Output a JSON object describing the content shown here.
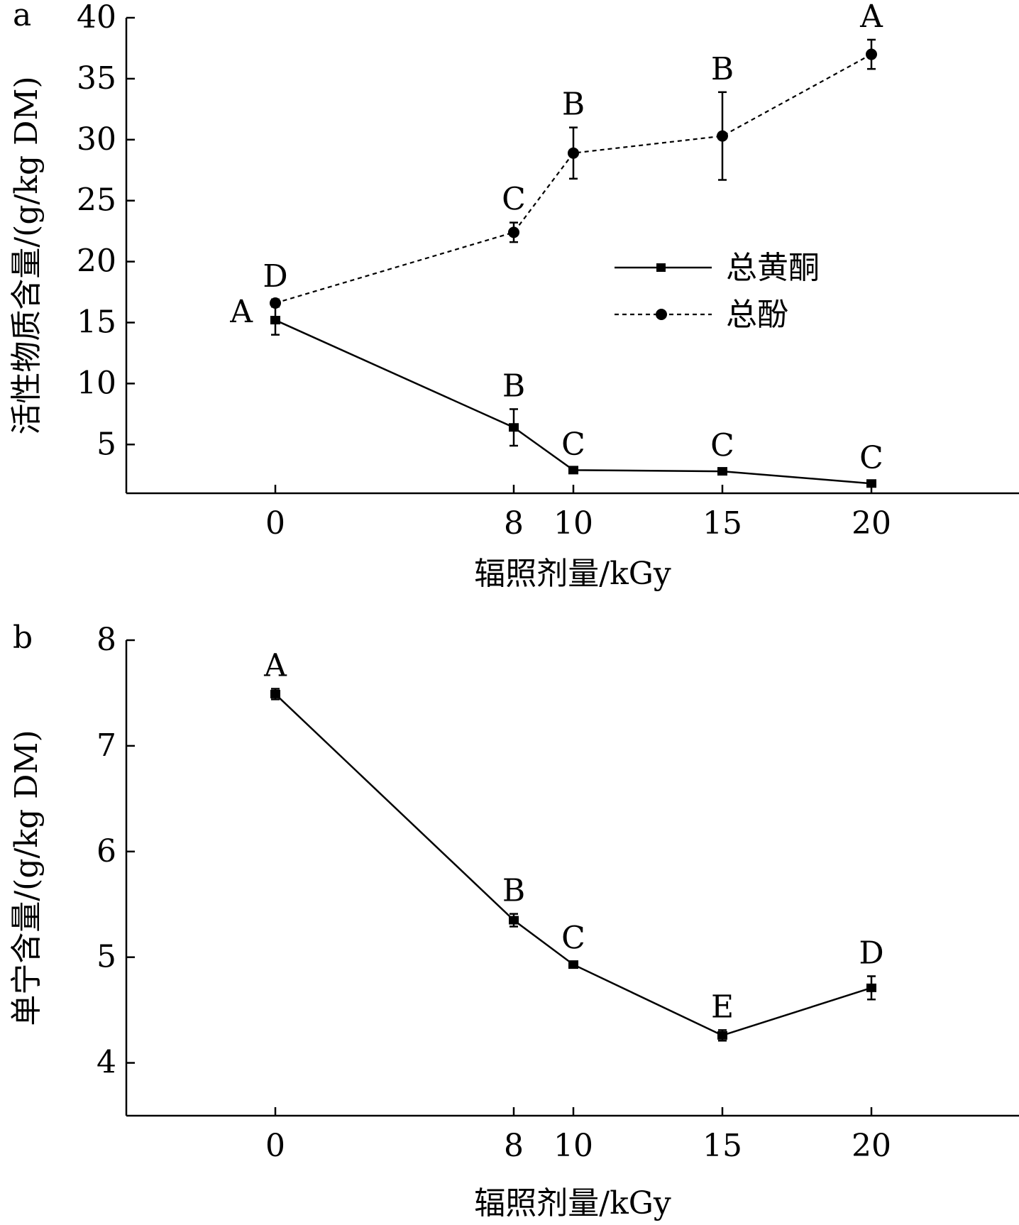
{
  "chart_data": [
    {
      "panel": "a",
      "type": "line",
      "x": [
        0,
        8,
        10,
        15,
        20
      ],
      "xticks": [
        "0",
        "8",
        "10",
        "15",
        "20"
      ],
      "xlabel": "辐照剂量/kGy",
      "ylabel": "活性物质含量/(g/kg DM)",
      "ylim": [
        1,
        40
      ],
      "yticks": [
        "5",
        "10",
        "15",
        "20",
        "25",
        "30",
        "35",
        "40"
      ],
      "legend_position": "center-right",
      "series": [
        {
          "name": "总黄酮",
          "line_style": "solid",
          "marker": "square",
          "values": [
            15.2,
            6.4,
            2.9,
            2.8,
            1.8
          ],
          "errors": [
            1.2,
            1.5,
            0.2,
            0.2,
            0.2
          ],
          "letters": [
            "A",
            "B",
            "C",
            "C",
            "C"
          ]
        },
        {
          "name": "总酚",
          "line_style": "dashed",
          "marker": "circle",
          "values": [
            16.6,
            22.4,
            28.9,
            30.3,
            37.0
          ],
          "errors": [
            0.3,
            0.8,
            2.1,
            3.6,
            1.2
          ],
          "letters": [
            "D",
            "C",
            "B",
            "B",
            "A"
          ]
        }
      ]
    },
    {
      "panel": "b",
      "type": "line",
      "x": [
        0,
        8,
        10,
        15,
        20
      ],
      "xticks": [
        "0",
        "8",
        "10",
        "15",
        "20"
      ],
      "xlabel": "辐照剂量/kGy",
      "ylabel": "单宁含量/(g/kg DM)",
      "ylim": [
        3.5,
        8
      ],
      "yticks": [
        "4",
        "5",
        "6",
        "7",
        "8"
      ],
      "series": [
        {
          "name": "单宁",
          "line_style": "solid",
          "marker": "square",
          "values": [
            7.49,
            5.35,
            4.93,
            4.26,
            4.71
          ],
          "errors": [
            0.05,
            0.06,
            0.03,
            0.05,
            0.11
          ],
          "letters": [
            "A",
            "B",
            "C",
            "E",
            "D"
          ]
        }
      ]
    }
  ]
}
